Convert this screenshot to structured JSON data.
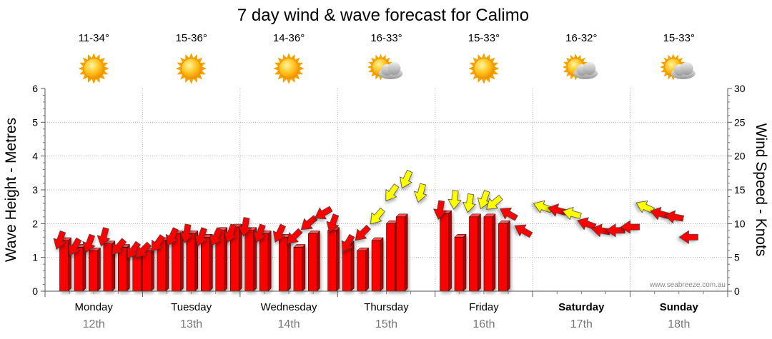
{
  "chart_data": {
    "type": "wind-wave-forecast",
    "title": "7 day wind & wave forecast for Calimo",
    "ylabel_left": "Wave Height - Metres",
    "ylabel_right": "Wind Speed - Knots",
    "ylim_left": [
      0,
      6
    ],
    "ylim_right": [
      0,
      30
    ],
    "yticks_left": [
      "0",
      "1",
      "2",
      "3",
      "4",
      "5",
      "6"
    ],
    "yticks_right": [
      "0",
      "5",
      "10",
      "15",
      "20",
      "25",
      "30"
    ],
    "watermark": "www.seabreeze.com.au",
    "days": [
      {
        "name": "Monday",
        "date": "12th",
        "temp": "11-34°",
        "weather": "sunny",
        "weekend": false
      },
      {
        "name": "Tuesday",
        "date": "13th",
        "temp": "15-36°",
        "weather": "sunny",
        "weekend": false
      },
      {
        "name": "Wednesday",
        "date": "14th",
        "temp": "14-36°",
        "weather": "sunny",
        "weekend": false
      },
      {
        "name": "Thursday",
        "date": "15th",
        "temp": "16-33°",
        "weather": "partly-cloudy",
        "weekend": false
      },
      {
        "name": "Friday",
        "date": "16th",
        "temp": "15-33°",
        "weather": "sunny",
        "weekend": false
      },
      {
        "name": "Saturday",
        "date": "17th",
        "temp": "16-32°",
        "weather": "partly-cloudy",
        "weekend": true
      },
      {
        "name": "Sunday",
        "date": "18th",
        "temp": "15-33°",
        "weather": "partly-cloudy",
        "weekend": true
      }
    ],
    "wave_bars": [
      {
        "t": 0.15,
        "h": 1.5
      },
      {
        "t": 0.3,
        "h": 1.3
      },
      {
        "t": 0.45,
        "h": 1.2
      },
      {
        "t": 0.6,
        "h": 1.4
      },
      {
        "t": 0.75,
        "h": 1.3
      },
      {
        "t": 0.9,
        "h": 1.1
      },
      {
        "t": 1.0,
        "h": 1.2
      },
      {
        "t": 1.15,
        "h": 1.5
      },
      {
        "t": 1.3,
        "h": 1.7
      },
      {
        "t": 1.45,
        "h": 1.7
      },
      {
        "t": 1.6,
        "h": 1.6
      },
      {
        "t": 1.75,
        "h": 1.8
      },
      {
        "t": 1.9,
        "h": 1.9
      },
      {
        "t": 2.05,
        "h": 1.8
      },
      {
        "t": 2.2,
        "h": 1.7
      },
      {
        "t": 2.4,
        "h": 1.6
      },
      {
        "t": 2.55,
        "h": 1.3
      },
      {
        "t": 2.7,
        "h": 1.7
      },
      {
        "t": 2.9,
        "h": 1.8
      },
      {
        "t": 3.05,
        "h": 1.4
      },
      {
        "t": 3.2,
        "h": 1.2
      },
      {
        "t": 3.35,
        "h": 1.5
      },
      {
        "t": 3.5,
        "h": 2.0
      },
      {
        "t": 3.6,
        "h": 2.2
      },
      {
        "t": 4.05,
        "h": 2.3
      },
      {
        "t": 4.2,
        "h": 1.6
      },
      {
        "t": 4.35,
        "h": 2.2
      },
      {
        "t": 4.5,
        "h": 2.2
      },
      {
        "t": 4.65,
        "h": 2.0
      }
    ],
    "wind_arrows": [
      {
        "t": 0.15,
        "knots": 7.5,
        "dir": 200,
        "color": "red"
      },
      {
        "t": 0.3,
        "knots": 6.5,
        "dir": 210,
        "color": "red"
      },
      {
        "t": 0.45,
        "knots": 7.0,
        "dir": 200,
        "color": "red"
      },
      {
        "t": 0.6,
        "knots": 8.0,
        "dir": 195,
        "color": "red"
      },
      {
        "t": 0.75,
        "knots": 6.5,
        "dir": 220,
        "color": "red"
      },
      {
        "t": 0.9,
        "knots": 6.0,
        "dir": 215,
        "color": "red"
      },
      {
        "t": 1.0,
        "knots": 6.0,
        "dir": 225,
        "color": "red"
      },
      {
        "t": 1.15,
        "knots": 7.0,
        "dir": 215,
        "color": "red"
      },
      {
        "t": 1.3,
        "knots": 8.0,
        "dir": 205,
        "color": "red"
      },
      {
        "t": 1.45,
        "knots": 8.5,
        "dir": 190,
        "color": "red"
      },
      {
        "t": 1.6,
        "knots": 8.0,
        "dir": 200,
        "color": "red"
      },
      {
        "t": 1.75,
        "knots": 8.0,
        "dir": 205,
        "color": "red"
      },
      {
        "t": 1.9,
        "knots": 8.5,
        "dir": 200,
        "color": "red"
      },
      {
        "t": 2.05,
        "knots": 9.5,
        "dir": 190,
        "color": "red"
      },
      {
        "t": 2.2,
        "knots": 8.5,
        "dir": 200,
        "color": "red"
      },
      {
        "t": 2.4,
        "knots": 8.5,
        "dir": 205,
        "color": "red"
      },
      {
        "t": 2.55,
        "knots": 8.0,
        "dir": 225,
        "color": "red"
      },
      {
        "t": 2.7,
        "knots": 10.0,
        "dir": 230,
        "color": "red"
      },
      {
        "t": 2.85,
        "knots": 11.5,
        "dir": 240,
        "color": "red"
      },
      {
        "t": 2.95,
        "knots": 10.0,
        "dir": 200,
        "color": "red"
      },
      {
        "t": 3.1,
        "knots": 7.0,
        "dir": 210,
        "color": "red"
      },
      {
        "t": 3.25,
        "knots": 8.5,
        "dir": 225,
        "color": "red"
      },
      {
        "t": 3.4,
        "knots": 11.0,
        "dir": 220,
        "color": "yellow"
      },
      {
        "t": 3.55,
        "knots": 14.5,
        "dir": 215,
        "color": "yellow"
      },
      {
        "t": 3.7,
        "knots": 16.5,
        "dir": 205,
        "color": "yellow"
      },
      {
        "t": 3.85,
        "knots": 14.5,
        "dir": 195,
        "color": "yellow"
      },
      {
        "t": 4.05,
        "knots": 12.0,
        "dir": 190,
        "color": "red"
      },
      {
        "t": 4.2,
        "knots": 13.5,
        "dir": 185,
        "color": "yellow"
      },
      {
        "t": 4.35,
        "knots": 13.0,
        "dir": 190,
        "color": "yellow"
      },
      {
        "t": 4.5,
        "knots": 13.5,
        "dir": 200,
        "color": "yellow"
      },
      {
        "t": 4.6,
        "knots": 13.0,
        "dir": 230,
        "color": "yellow"
      },
      {
        "t": 4.75,
        "knots": 11.5,
        "dir": 300,
        "color": "red"
      },
      {
        "t": 4.9,
        "knots": 9.0,
        "dir": 300,
        "color": "red"
      },
      {
        "t": 5.1,
        "knots": 12.5,
        "dir": 290,
        "color": "yellow"
      },
      {
        "t": 5.25,
        "knots": 12.0,
        "dir": 285,
        "color": "red"
      },
      {
        "t": 5.4,
        "knots": 11.5,
        "dir": 285,
        "color": "yellow"
      },
      {
        "t": 5.55,
        "knots": 10.0,
        "dir": 290,
        "color": "red"
      },
      {
        "t": 5.7,
        "knots": 9.0,
        "dir": 280,
        "color": "red"
      },
      {
        "t": 5.85,
        "knots": 9.0,
        "dir": 270,
        "color": "red"
      },
      {
        "t": 6.0,
        "knots": 9.5,
        "dir": 270,
        "color": "red"
      },
      {
        "t": 6.15,
        "knots": 12.5,
        "dir": 295,
        "color": "yellow"
      },
      {
        "t": 6.3,
        "knots": 11.5,
        "dir": 285,
        "color": "red"
      },
      {
        "t": 6.45,
        "knots": 11.0,
        "dir": 280,
        "color": "red"
      },
      {
        "t": 6.6,
        "knots": 8.0,
        "dir": 270,
        "color": "red"
      }
    ]
  }
}
